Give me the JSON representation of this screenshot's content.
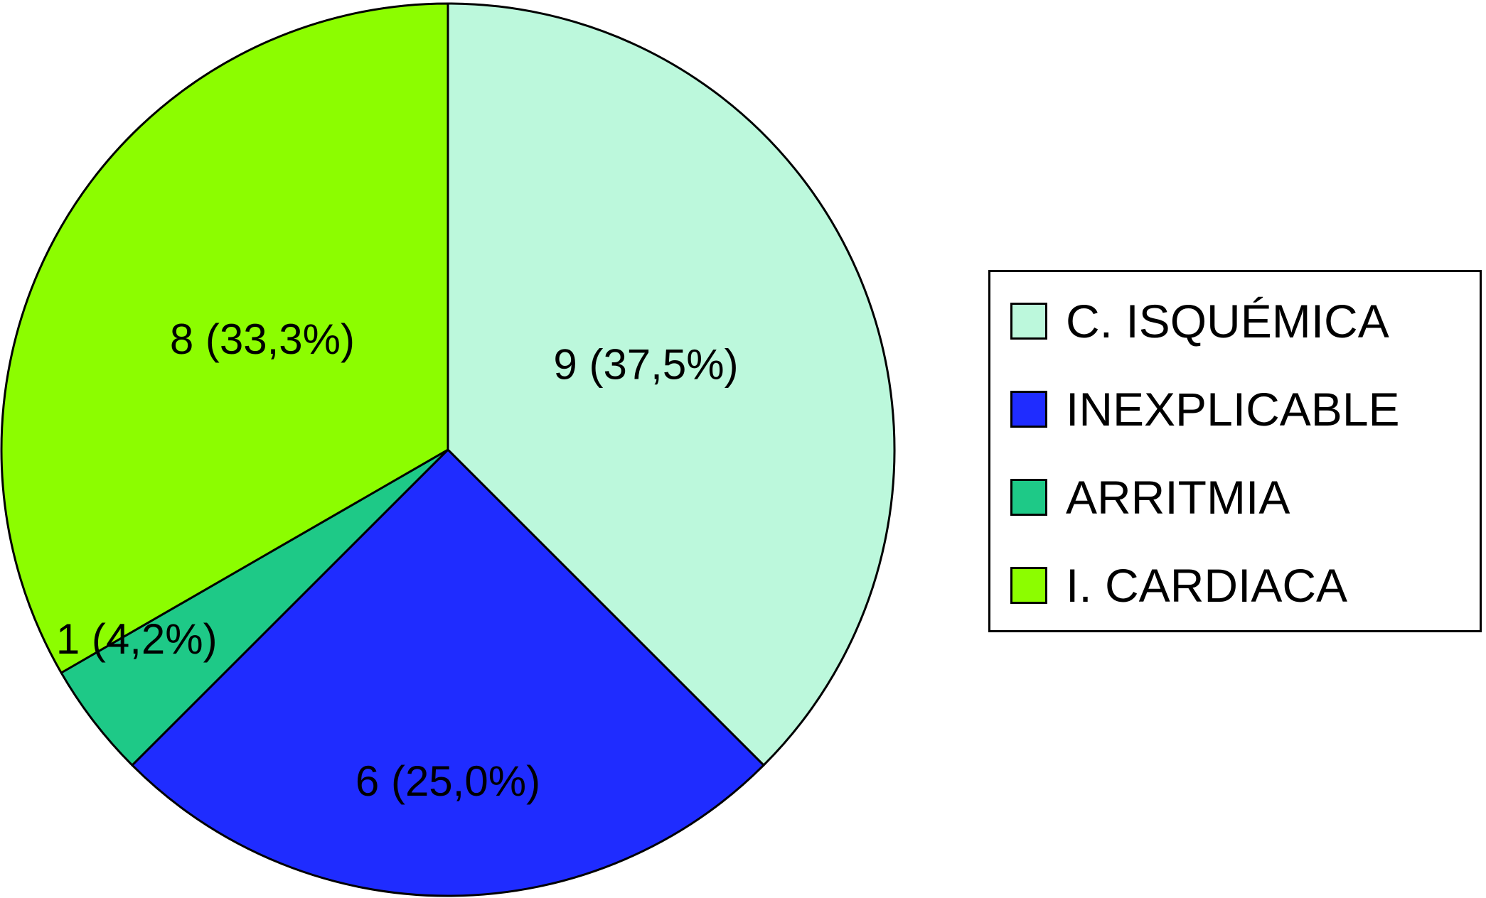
{
  "chart_data": {
    "type": "pie",
    "title": "",
    "start": "12 o'clock, clockwise",
    "slices": [
      {
        "name": "C. ISQUÉMICA",
        "value": 9,
        "percent": 37.5,
        "label": "9 (37,5%)",
        "color": "#bcf8dc"
      },
      {
        "name": "INEXPLICABLE",
        "value": 6,
        "percent": 25.0,
        "label": "6 (25,0%)",
        "color": "#1f2cff"
      },
      {
        "name": "ARRITMIA",
        "value": 1,
        "percent": 4.2,
        "label": "1 (4,2%)",
        "color": "#1ec987"
      },
      {
        "name": "I. CARDIACA",
        "value": 8,
        "percent": 33.3,
        "label": "8 (33,3%)",
        "color": "#8cfd00"
      }
    ],
    "legend": {
      "position": "right",
      "items": [
        {
          "label": "C. ISQUÉMICA",
          "color": "#bcf8dc"
        },
        {
          "label": "INEXPLICABLE",
          "color": "#1f2cff"
        },
        {
          "label": "ARRITMIA",
          "color": "#1ec987"
        },
        {
          "label": "I. CARDIACA",
          "color": "#8cfd00"
        }
      ]
    }
  }
}
